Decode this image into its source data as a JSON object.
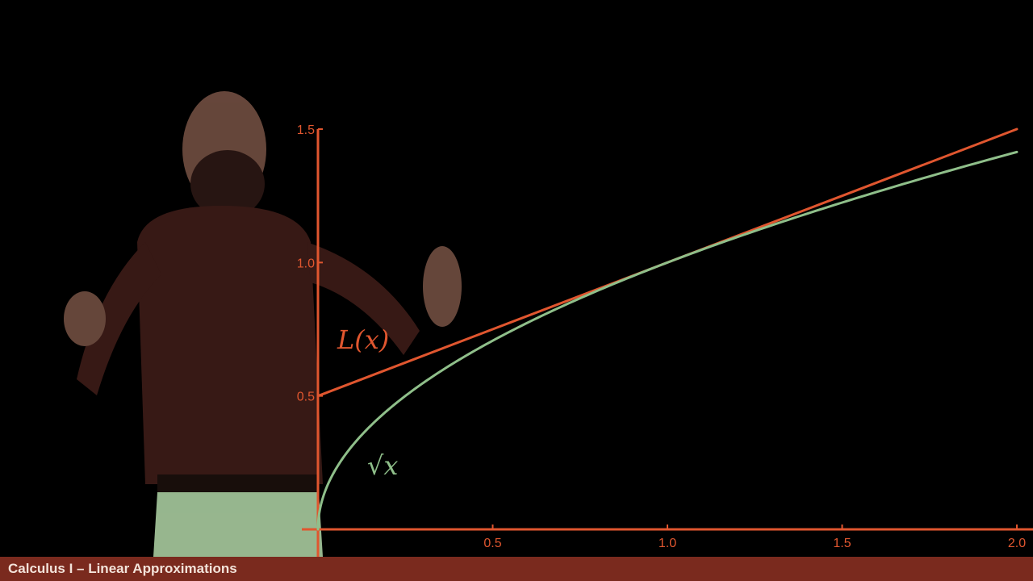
{
  "colors": {
    "background": "#000000",
    "axis": "#e0562f",
    "tangent": "#e0562f",
    "sqrt": "#8fbf8a",
    "title_bar": "#7a2a1e",
    "presenter_shirt": "#3a1b17",
    "presenter_skin": "#6b4a3e",
    "presenter_pants": "#9fc096"
  },
  "chart_data": {
    "type": "line",
    "xlim": [
      0,
      2.0
    ],
    "ylim": [
      0,
      1.5
    ],
    "x_ticks": [
      0.5,
      1.0,
      1.5,
      2.0
    ],
    "x_tick_labels": [
      "0.5",
      "1.0",
      "1.5",
      "2.0"
    ],
    "y_ticks": [
      0.5,
      1.0,
      1.5
    ],
    "y_tick_labels": [
      "0.5",
      "1.0",
      "1.5"
    ],
    "grid": false,
    "series": [
      {
        "name": "L(x)",
        "color": "#e0562f",
        "x": [
          0,
          0.5,
          1.0,
          1.5,
          2.0
        ],
        "y": [
          0.5,
          0.75,
          1.0,
          1.25,
          1.5
        ]
      },
      {
        "name": "√x",
        "color": "#8fbf8a",
        "x": [
          0.0,
          0.01,
          0.05,
          0.1,
          0.2,
          0.3,
          0.5,
          0.75,
          1.0,
          1.25,
          1.5,
          1.75,
          2.0
        ],
        "y": [
          0.0,
          0.1,
          0.2236,
          0.3162,
          0.4472,
          0.5477,
          0.7071,
          0.866,
          1.0,
          1.118,
          1.2247,
          1.3229,
          1.4142
        ]
      }
    ],
    "annotations": {
      "tangent_label": "L(x)",
      "sqrt_label": "√x"
    }
  },
  "footer": {
    "title": "Calculus I – Linear Approximations"
  }
}
